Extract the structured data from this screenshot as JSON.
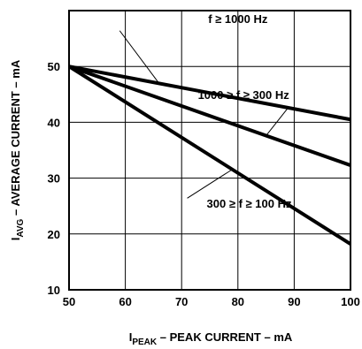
{
  "chart_data": {
    "type": "line",
    "xlabel": {
      "main": "I",
      "sub": "PEAK",
      "rest": " – PEAK CURRENT – mA"
    },
    "ylabel": {
      "main": "I",
      "sub": "AVG",
      "rest": " – AVERAGE CURRENT – mA"
    },
    "xlim": [
      50,
      100
    ],
    "ylim": [
      10,
      60
    ],
    "x_ticks": [
      50,
      60,
      70,
      80,
      90,
      100
    ],
    "y_ticks": [
      10,
      20,
      30,
      40,
      50
    ],
    "grid": true,
    "series": [
      {
        "label": "f ≥ 1000 Hz",
        "x": [
          50,
          100
        ],
        "y": [
          50,
          40.5
        ]
      },
      {
        "label": "1000 ≥ f ≥ 300 Hz",
        "x": [
          50,
          100
        ],
        "y": [
          50,
          32.3
        ]
      },
      {
        "label": "300 ≥ f ≥ 100 Hz",
        "x": [
          50,
          100
        ],
        "y": [
          50,
          18.2
        ]
      }
    ],
    "colors": {
      "line": "#000000",
      "grid": "#000000",
      "background": "#ffffff"
    }
  }
}
